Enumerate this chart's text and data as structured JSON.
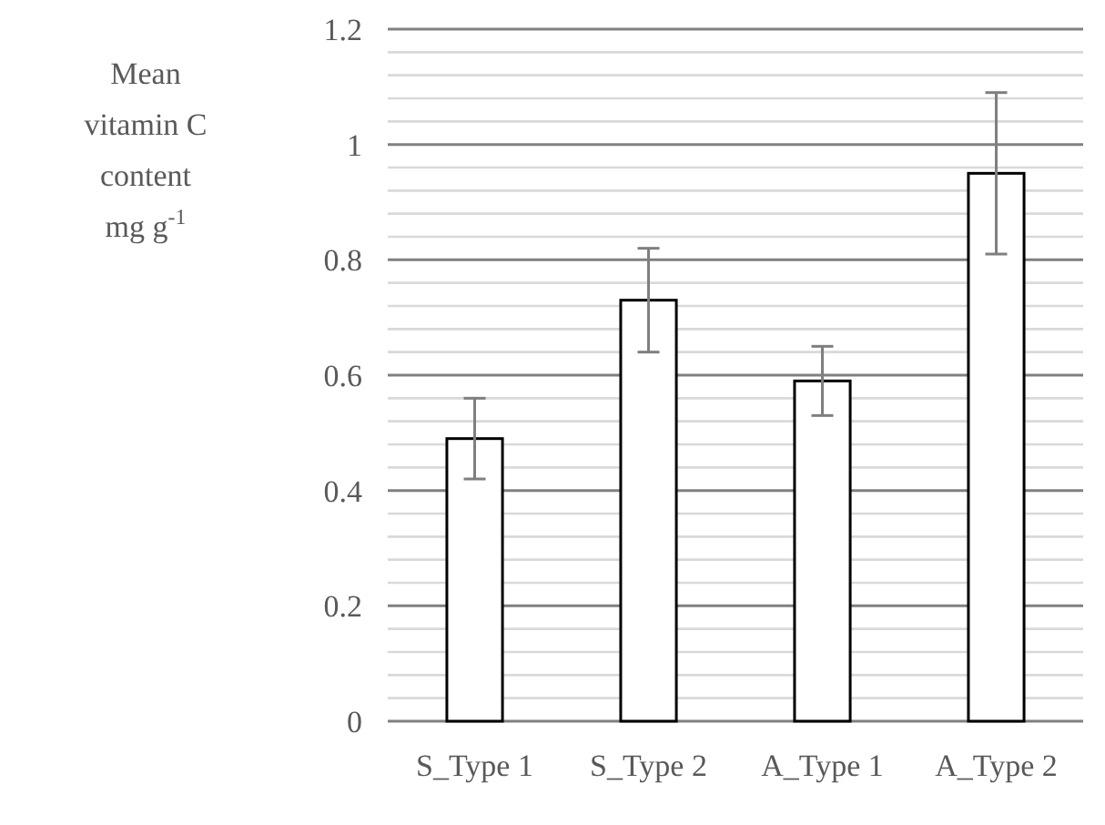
{
  "chart_data": {
    "type": "bar",
    "ylabel": "Mean vitamin C content mg g$^{-1}$",
    "categories": [
      "S_Type 1",
      "S_Type 2",
      "A_Type 1",
      "A_Type 2"
    ],
    "values": [
      0.49,
      0.73,
      0.59,
      0.95
    ],
    "errors": [
      0.07,
      0.09,
      0.06,
      0.14
    ],
    "color": "#ffffff",
    "ylim": [
      0,
      1.2
    ],
    "yticks": [
      0,
      {
        "value": 0.04,
        "label": null
      },
      {
        "value": 0.08,
        "label": null
      },
      {
        "value": 0.12,
        "label": null
      },
      {
        "value": 0.16,
        "label": null
      },
      0.2,
      {
        "value": 0.24,
        "label": null
      },
      {
        "value": 0.28,
        "label": null
      },
      {
        "value": 0.32,
        "label": null
      },
      {
        "value": 0.36,
        "label": null
      },
      0.4,
      {
        "value": 0.44,
        "label": null
      },
      {
        "value": 0.48,
        "label": null
      },
      {
        "value": 0.52,
        "label": null
      },
      {
        "value": 0.56,
        "label": null
      },
      0.6,
      {
        "value": 0.64,
        "label": null
      },
      {
        "value": 0.68,
        "label": null
      },
      {
        "value": 0.72,
        "label": null
      },
      {
        "value": 0.76,
        "label": null
      },
      0.8,
      {
        "value": 0.84,
        "label": null
      },
      {
        "value": 0.88,
        "label": null
      },
      {
        "value": 0.92,
        "label": null
      },
      {
        "value": 0.96,
        "label": null
      },
      1,
      {
        "value": 1.04,
        "label": null
      },
      {
        "value": 1.08,
        "label": null
      },
      {
        "value": 1.12,
        "label": null
      },
      {
        "value": 1.16,
        "label": null
      },
      1.2
    ],
    "grid": "y"
  }
}
